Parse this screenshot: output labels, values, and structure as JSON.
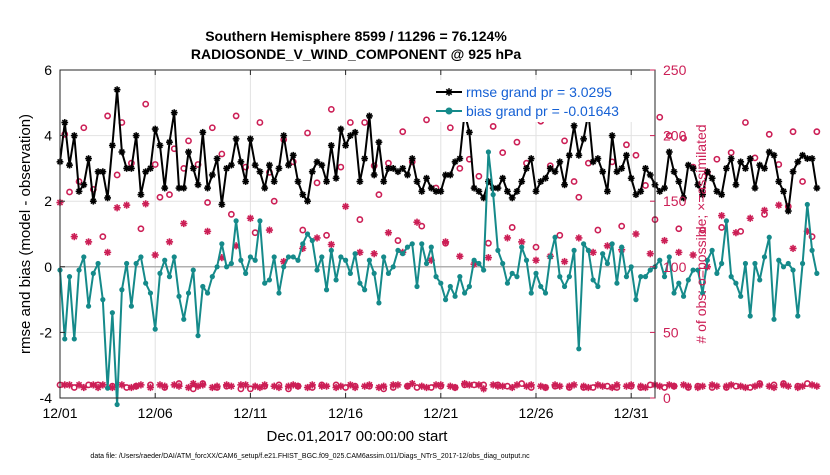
{
  "chart_data": {
    "type": "line",
    "title_line1": "Southern Hemisphere 8599 / 11296 = 76.124%",
    "title_line2": "RADIOSONDE_V_WIND_COMPONENT @ 925 hPa",
    "xlabel": "Dec.01,2017 00:00:00 start",
    "ylabel": "rmse and bias (model - observation)",
    "y2label": "# of obs: o=possible; ×=assimilated",
    "footnote": "data file: /Users/raeder/DAI/ATM_forcXX/CAM6_setup/f.e21.FHIST_BGC.f09_025.CAM6assim.011/Diags_NTrS_2017-12/obs_diag_output.nc",
    "xlim": [
      1,
      32.25
    ],
    "ylim": [
      -4,
      6
    ],
    "y2lim": [
      0,
      250
    ],
    "xtick_values": [
      1,
      6,
      11,
      16,
      21,
      26,
      31
    ],
    "xtick_labels": [
      "12/01",
      "12/06",
      "12/11",
      "12/16",
      "12/21",
      "12/26",
      "12/31"
    ],
    "ytick_values": [
      -4,
      -2,
      0,
      2,
      4,
      6
    ],
    "ytick_labels": [
      "-4",
      "-2",
      "0",
      "2",
      "4",
      "6"
    ],
    "y2tick_values": [
      0,
      50,
      100,
      150,
      200,
      250
    ],
    "y2tick_labels": [
      "0",
      "50",
      "100",
      "150",
      "200",
      "250"
    ],
    "x_start": 1,
    "x_step": 0.25,
    "legend": [
      {
        "name": "rmse grand pr = 3.0295",
        "color": "#000000"
      },
      {
        "name": "bias grand pr = -0.01643",
        "color": "#158a8a"
      }
    ],
    "series": [
      {
        "name": "rmse",
        "color": "#000000",
        "values": [
          3.2,
          4.4,
          3.1,
          4.0,
          2.3,
          2.5,
          3.3,
          2.0,
          2.9,
          2.9,
          2.1,
          3.7,
          5.4,
          3.5,
          3.0,
          3.0,
          4.0,
          2.2,
          2.9,
          3.0,
          4.2,
          3.7,
          2.4,
          3.8,
          4.7,
          2.4,
          2.4,
          3.5,
          3.0,
          2.5,
          4.1,
          2.4,
          2.8,
          3.3,
          1.9,
          3.0,
          3.1,
          3.9,
          3.2,
          2.6,
          3.9,
          3.1,
          2.9,
          2.4,
          3.1,
          2.6,
          3.0,
          4.0,
          3.1,
          3.4,
          2.6,
          2.2,
          2.0,
          2.9,
          3.2,
          3.1,
          2.6,
          3.7,
          2.7,
          4.2,
          3.7,
          4.0,
          4.1,
          2.6,
          3.3,
          4.6,
          2.8,
          3.8,
          2.6,
          3.0,
          3.0,
          2.9,
          3.0,
          2.8,
          3.3,
          2.6,
          2.3,
          2.7,
          2.4,
          2.3,
          2.3,
          2.8,
          2.8,
          3.2,
          3.3,
          4.7,
          4.1,
          2.4,
          2.3,
          2.1,
          2.6,
          2.4,
          2.4,
          2.7,
          2.3,
          2.1,
          2.3,
          2.6,
          3.0,
          3.3,
          2.3,
          2.6,
          2.7,
          3.0,
          2.9,
          3.2,
          2.5,
          3.4,
          4.3,
          3.4,
          3.9,
          4.7,
          3.2,
          3.3,
          2.9,
          2.3,
          4.0,
          2.9,
          3.0,
          3.4,
          2.7,
          2.2,
          2.3,
          3.0,
          2.8,
          2.5,
          2.3,
          2.4,
          3.5,
          2.9,
          2.6,
          2.1,
          3.1,
          3.0,
          2.5,
          2.2,
          2.9,
          2.7,
          2.3,
          2.2,
          3.0,
          3.3,
          2.5,
          3.2,
          3.0,
          3.3,
          2.4,
          3.1,
          3.0,
          3.5,
          3.4,
          2.6,
          2.3,
          1.7,
          2.9,
          3.2,
          3.4,
          3.3,
          3.3,
          2.4
        ]
      },
      {
        "name": "bias",
        "color": "#158a8a",
        "values": [
          -0.1,
          -2.2,
          -0.3,
          -2.2,
          -0.1,
          0.3,
          -1.2,
          -0.2,
          0.1,
          -1.0,
          -3.7,
          -1.4,
          -4.2,
          -0.7,
          0.1,
          -1.2,
          0.1,
          0.3,
          -0.5,
          -0.8,
          -1.9,
          -0.2,
          0.2,
          -0.3,
          0.3,
          -0.9,
          -1.6,
          -0.8,
          -0.1,
          -2.1,
          -0.6,
          -0.8,
          -0.3,
          0.0,
          0.7,
          0.0,
          0.1,
          1.4,
          0.2,
          -0.2,
          0.3,
          0.2,
          1.4,
          -0.5,
          -0.4,
          0.3,
          -0.8,
          0.0,
          0.3,
          0.3,
          0.2,
          0.7,
          1.0,
          0.8,
          -0.1,
          0.3,
          -0.7,
          0.5,
          -0.4,
          0.3,
          0.2,
          -0.2,
          0.4,
          -0.5,
          -0.7,
          0.2,
          -0.2,
          -1.1,
          0.3,
          -0.2,
          0.0,
          0.5,
          0.4,
          0.6,
          0.7,
          -0.6,
          0.7,
          0.1,
          0.6,
          -0.3,
          -0.5,
          -1.0,
          -0.6,
          -0.9,
          -0.3,
          -0.8,
          -0.6,
          0.2,
          0.1,
          -0.1,
          3.5,
          2.2,
          0.5,
          0.1,
          -0.5,
          -0.2,
          -0.3,
          0.6,
          0.2,
          -0.8,
          -0.2,
          -0.6,
          -0.8,
          0.3,
          0.9,
          -0.3,
          -0.6,
          -0.3,
          0.5,
          -2.5,
          0.7,
          0.5,
          -0.4,
          -0.6,
          0.4,
          0.1,
          0.7,
          -0.5,
          0.6,
          -0.3,
          0.0,
          -1.0,
          -0.3,
          -0.3,
          -0.1,
          0.0,
          0.2,
          -0.3,
          0.3,
          -0.8,
          -0.5,
          -0.9,
          -0.4,
          -0.1,
          -0.1,
          -0.8,
          0.2,
          0.5,
          -0.2,
          0.1,
          1.4,
          -0.3,
          -0.5,
          -0.9,
          0.1,
          -1.5,
          0.1,
          -0.4,
          0.3,
          0.9,
          -1.6,
          0.2,
          0.0,
          0.1,
          -0.1,
          -1.5,
          0.1,
          1.9,
          0.5,
          -0.2
        ]
      },
      {
        "name": "possible",
        "color": "#cc1f56",
        "marker": "o",
        "values": [
          10,
          201,
          157,
          8,
          165,
          206,
          10,
          159,
          10,
          123,
          215,
          9,
          170,
          210,
          8,
          179,
          9,
          129,
          224,
          10,
          178,
          153,
          8,
          155,
          190,
          11,
          175,
          196,
          7,
          178,
          11,
          149,
          206,
          8,
          186,
          9,
          140,
          215,
          7,
          176,
          7,
          126,
          210,
          9,
          172,
          150,
          10,
          197,
          7,
          180,
          9,
          128,
          202,
          8,
          164,
          10,
          124,
          220,
          10,
          176,
          8,
          210,
          9,
          136,
          210,
          9,
          177,
          155,
          7,
          179,
          8,
          120,
          203,
          9,
          180,
          8,
          131,
          212,
          8,
          160,
          9,
          118,
          206,
          8,
          175,
          10,
          182,
          10,
          169,
          10,
          118,
          207,
          10,
          187,
          9,
          130,
          195,
          11,
          179,
          8,
          115,
          211,
          8,
          177,
          9,
          124,
          196,
          8,
          165,
          153,
          8,
          179,
          8,
          128,
          214,
          9,
          180,
          8,
          131,
          193,
          9,
          185,
          8,
          162,
          10,
          136,
          214,
          8,
          200,
          9,
          129,
          198,
          8,
          176,
          9,
          128,
          172,
          8,
          182,
          130,
          8,
          187,
          9,
          127,
          210,
          8,
          183,
          11,
          140,
          201,
          10,
          178,
          11,
          146,
          203,
          9,
          165,
          11,
          123,
          203
        ]
      },
      {
        "name": "assimilated",
        "color": "#cc1f56",
        "marker": "*",
        "values": [
          149,
          10,
          10,
          123,
          10,
          8,
          119,
          10,
          8,
          10,
          111,
          8,
          145,
          10,
          147,
          8,
          9,
          10,
          148,
          8,
          109,
          10,
          9,
          119,
          10,
          9,
          133,
          8,
          11,
          9,
          10,
          127,
          8,
          9,
          107,
          10,
          9,
          116,
          10,
          10,
          137,
          9,
          8,
          10,
          128,
          9,
          8,
          104,
          9,
          10,
          9,
          114,
          8,
          10,
          122,
          9,
          9,
          117,
          8,
          9,
          146,
          10,
          8,
          111,
          9,
          10,
          110,
          8,
          9,
          126,
          10,
          10,
          111,
          9,
          11,
          134,
          9,
          8,
          105,
          10,
          10,
          119,
          9,
          8,
          108,
          11,
          10,
          102,
          10,
          7,
          107,
          10,
          9,
          9,
          122,
          8,
          10,
          119,
          9,
          10,
          105,
          9,
          8,
          108,
          10,
          9,
          104,
          9,
          10,
          122,
          9,
          8,
          111,
          10,
          9,
          116,
          8,
          10,
          113,
          9,
          10,
          125,
          9,
          8,
          110,
          10,
          9,
          120,
          10,
          9,
          111,
          10,
          9,
          109,
          8,
          9,
          100,
          10,
          9,
          139,
          9,
          10,
          126,
          9,
          8,
          137,
          9,
          10,
          143,
          9,
          8,
          147,
          10,
          9,
          114,
          8,
          9,
          127,
          10,
          9
        ]
      }
    ]
  }
}
